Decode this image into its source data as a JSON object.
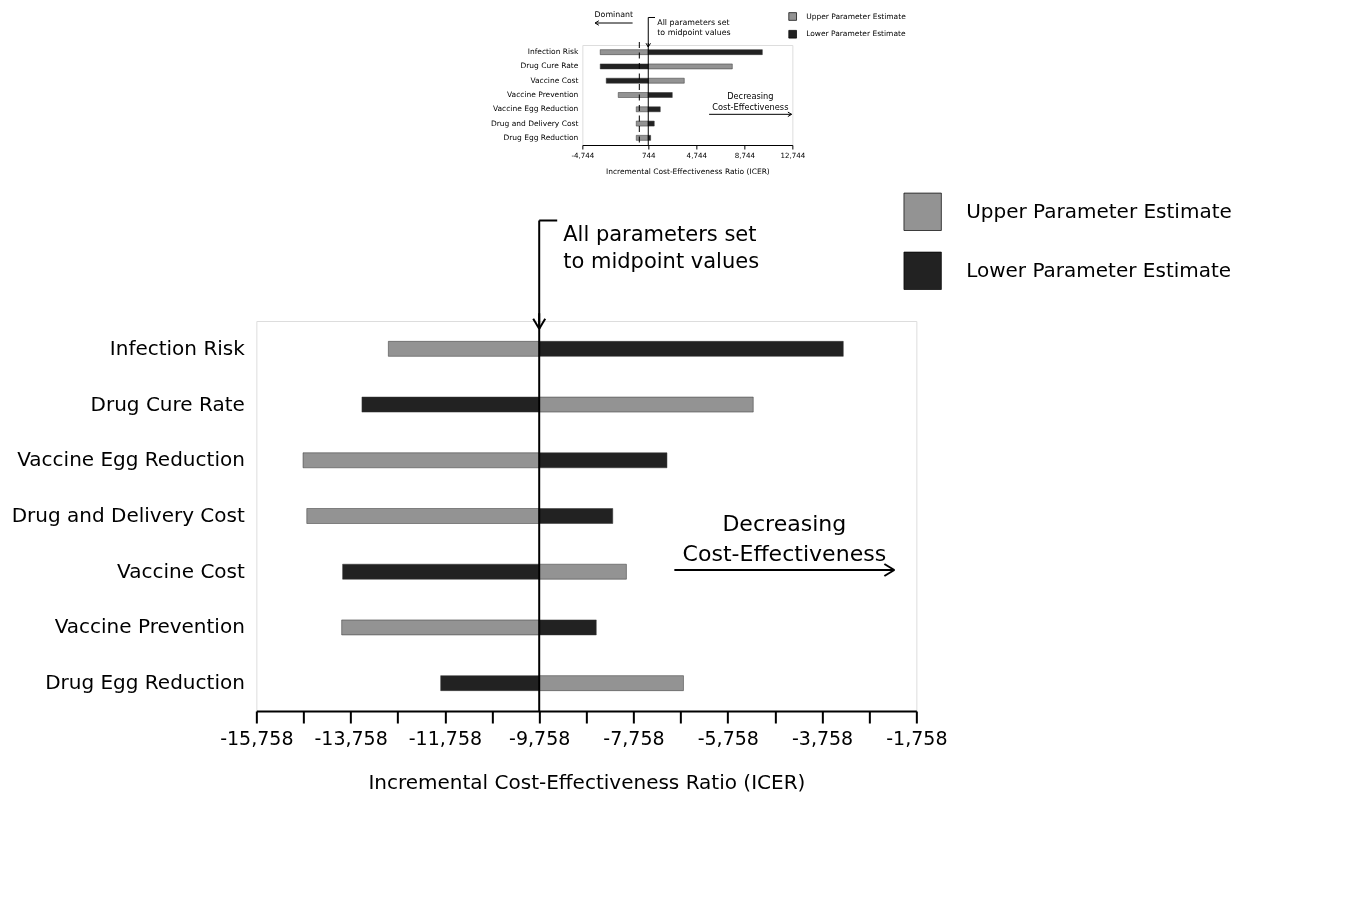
{
  "chart_data": [
    {
      "type": "bar",
      "orientation": "horizontal",
      "legend": "top right",
      "xlabel": "Incremental Cost-Effectiveness Ratio (ICER)",
      "categories": [
        "Infection Risk",
        "Drug Cure Rate",
        "Vaccine Cost",
        "Vaccine Prevention",
        "Vaccine Egg Reduction",
        "Drug and Delivery Cost",
        "Drug Egg Reduction"
      ],
      "series": [
        {
          "name": "Upper Parameter Estimate",
          "color": "#939393",
          "base": [
            744,
            744,
            744,
            744,
            744,
            744,
            744
          ],
          "values": [
            -4000,
            7000,
            3000,
            -2500,
            -1000,
            -1000,
            -1000
          ]
        },
        {
          "name": "Lower Parameter Estimate",
          "color": "#222222",
          "base": [
            744,
            744,
            744,
            744,
            744,
            744,
            744
          ],
          "values": [
            9500,
            -4000,
            -3500,
            2000,
            1000,
            500,
            200
          ]
        }
      ],
      "xlim": [
        -4744,
        12744
      ],
      "xticks": [
        {
          "value": -4744,
          "label": "-4,744"
        },
        {
          "value": 744,
          "label": "744"
        },
        {
          "value": 4744,
          "label": "4,744"
        },
        {
          "value": 8744,
          "label": "8,744"
        },
        {
          "value": 12744,
          "label": "12,744"
        }
      ],
      "ref_lines": [
        {
          "axis": "x",
          "value": 744,
          "label": "All parameters set to midpoint values",
          "line_style": "solid"
        },
        {
          "axis": "x",
          "value": 0,
          "label": null,
          "line_style": "dashed"
        }
      ],
      "annotations": [
        "Dominant",
        "Decreasing Cost-Effectiveness"
      ],
      "grid": false
    },
    {
      "type": "bar",
      "orientation": "horizontal",
      "legend": "top right",
      "xlabel": "Incremental Cost-Effectiveness Ratio (ICER)",
      "categories": [
        "Infection Risk",
        "Drug Cure Rate",
        "Vaccine Egg Reduction",
        "Drug and Delivery Cost",
        "Vaccine Cost",
        "Vaccine Prevention",
        "Drug Egg Reduction"
      ],
      "series": [
        {
          "name": "Upper Parameter Estimate",
          "color": "#939393",
          "base": [
            -9758,
            -9758,
            -9758,
            -9758,
            -9758,
            -9758,
            -9758
          ],
          "values": [
            -3200,
            4540,
            -5010,
            -4930,
            1850,
            -4190,
            3060
          ]
        },
        {
          "name": "Lower Parameter Estimate",
          "color": "#222222",
          "base": [
            -9758,
            -9758,
            -9758,
            -9758,
            -9758,
            -9758,
            -9758
          ],
          "values": [
            6450,
            -3760,
            2710,
            1560,
            -4170,
            1210,
            -2090
          ]
        }
      ],
      "xlim": [
        -15758,
        -1758
      ],
      "xticks": [
        {
          "value": -15758,
          "label": "-15,758"
        },
        {
          "value": -14758,
          "label": null
        },
        {
          "value": -13758,
          "label": "-13,758"
        },
        {
          "value": -12758,
          "label": null
        },
        {
          "value": -11758,
          "label": "-11,758"
        },
        {
          "value": -10758,
          "label": null
        },
        {
          "value": -9758,
          "label": "-9,758"
        },
        {
          "value": -8758,
          "label": null
        },
        {
          "value": -7758,
          "label": "-7,758"
        },
        {
          "value": -6758,
          "label": null
        },
        {
          "value": -5758,
          "label": "-5,758"
        },
        {
          "value": -4758,
          "label": null
        },
        {
          "value": -3758,
          "label": "-3,758"
        },
        {
          "value": -2758,
          "label": null
        },
        {
          "value": -1758,
          "label": "-1,758"
        }
      ],
      "ref_lines": [
        {
          "axis": "x",
          "value": -9758,
          "label": "All parameters set to midpoint values",
          "line_style": "solid"
        }
      ],
      "annotations": [
        "Decreasing Cost-Effectiveness"
      ],
      "grid": false
    }
  ]
}
